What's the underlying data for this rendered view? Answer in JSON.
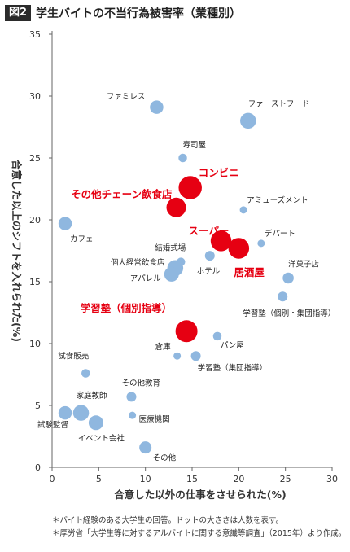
{
  "header": {
    "figure_tag": "図2",
    "title": "学生バイトの不当行為被害率（業種別）"
  },
  "notes": [
    "＊バイト経験のある大学生の回答。ドットの大きさは人数を表す。",
    "＊厚労省「大学生等に対するアルバイトに関する意識等調査」（2015年）より作成。"
  ],
  "colors": {
    "normal": "#8fb7df",
    "highlight": "#e60012",
    "highlight_label": "#e60012",
    "axis": "#666666"
  },
  "chart_data": {
    "type": "scatter",
    "xlabel": "合意した以外の仕事をさせられた(%)",
    "ylabel": "合意した以上のシフトを入れられた(%)",
    "xlim": [
      0,
      30
    ],
    "ylim": [
      0,
      35
    ],
    "xticks": [
      0,
      5,
      10,
      15,
      20,
      25,
      30
    ],
    "yticks": [
      0,
      5,
      10,
      15,
      20,
      25,
      30,
      35
    ],
    "grid": false,
    "points": [
      {
        "label": "ファミレス",
        "x": 11.2,
        "y": 29.1,
        "size": 1.1,
        "highlight": false
      },
      {
        "label": "ファーストフード",
        "x": 21.0,
        "y": 28.0,
        "size": 1.3,
        "highlight": false
      },
      {
        "label": "寿司屋",
        "x": 14.0,
        "y": 25.0,
        "size": 0.7,
        "highlight": false
      },
      {
        "label": "コンビニ",
        "x": 14.8,
        "y": 22.6,
        "size": 1.9,
        "highlight": true
      },
      {
        "label": "その他チェーン飲食店",
        "x": 13.3,
        "y": 21.0,
        "size": 1.6,
        "highlight": true
      },
      {
        "label": "アミューズメント",
        "x": 20.5,
        "y": 20.8,
        "size": 0.6,
        "highlight": false
      },
      {
        "label": "カフェ",
        "x": 1.4,
        "y": 19.7,
        "size": 1.1,
        "highlight": false
      },
      {
        "label": "スーパー",
        "x": 18.1,
        "y": 18.3,
        "size": 1.7,
        "highlight": true
      },
      {
        "label": "デパート",
        "x": 22.4,
        "y": 18.1,
        "size": 0.6,
        "highlight": false
      },
      {
        "label": "居酒屋",
        "x": 20.0,
        "y": 17.7,
        "size": 1.7,
        "highlight": true
      },
      {
        "label": "結婚式場",
        "x": 13.8,
        "y": 16.6,
        "size": 0.7,
        "highlight": false
      },
      {
        "label": "ホテル",
        "x": 16.9,
        "y": 17.1,
        "size": 0.8,
        "highlight": false
      },
      {
        "label": "個人経営飲食店",
        "x": 13.2,
        "y": 16.1,
        "size": 1.3,
        "highlight": false
      },
      {
        "label": "アパレル",
        "x": 12.8,
        "y": 15.6,
        "size": 1.2,
        "highlight": false
      },
      {
        "label": "洋菓子店",
        "x": 25.3,
        "y": 15.3,
        "size": 0.9,
        "highlight": false
      },
      {
        "label": "学習塾（個別・集団指導）",
        "x": 24.7,
        "y": 13.8,
        "size": 0.8,
        "highlight": false
      },
      {
        "label": "学習塾（個別指導）",
        "x": 14.4,
        "y": 11.0,
        "size": 1.8,
        "highlight": true
      },
      {
        "label": "パン屋",
        "x": 17.7,
        "y": 10.6,
        "size": 0.7,
        "highlight": false
      },
      {
        "label": "倉庫",
        "x": 13.4,
        "y": 9.0,
        "size": 0.6,
        "highlight": false
      },
      {
        "label": "学習塾（集団指導）",
        "x": 15.4,
        "y": 9.0,
        "size": 0.8,
        "highlight": false
      },
      {
        "label": "試食販売",
        "x": 3.6,
        "y": 7.6,
        "size": 0.7,
        "highlight": false
      },
      {
        "label": "その他教育",
        "x": 8.5,
        "y": 5.7,
        "size": 0.8,
        "highlight": false
      },
      {
        "label": "家庭教師",
        "x": 3.1,
        "y": 4.4,
        "size": 1.3,
        "highlight": false
      },
      {
        "label": "試験監督",
        "x": 1.4,
        "y": 4.4,
        "size": 1.1,
        "highlight": false
      },
      {
        "label": "医療機関",
        "x": 8.6,
        "y": 4.2,
        "size": 0.6,
        "highlight": false
      },
      {
        "label": "イベント会社",
        "x": 4.7,
        "y": 3.6,
        "size": 1.2,
        "highlight": false
      },
      {
        "label": "その他",
        "x": 10.0,
        "y": 1.6,
        "size": 1.0,
        "highlight": false
      }
    ]
  }
}
